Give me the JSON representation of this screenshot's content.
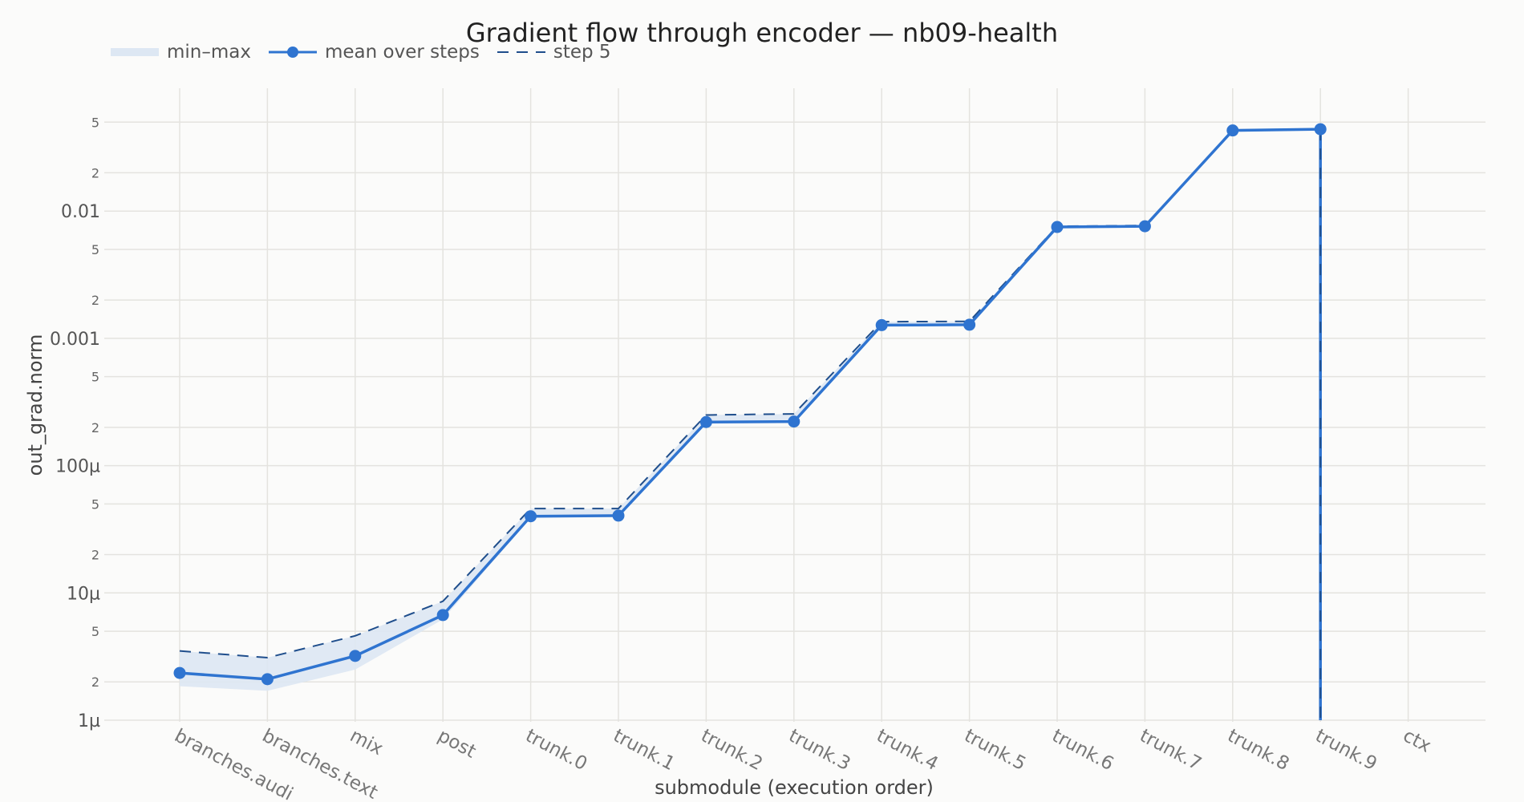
{
  "chart_data": {
    "type": "line",
    "title": "Gradient flow through encoder — nb09-health",
    "xlabel": "submodule (execution order)",
    "ylabel": "out_grad.norm",
    "y_scale": "log",
    "ylim": [
      1e-06,
      0.06
    ],
    "grid": true,
    "legend_position": "top-left",
    "categories": [
      "branches.audio",
      "branches.text",
      "mix",
      "post",
      "trunk.0",
      "trunk.1",
      "trunk.2",
      "trunk.3",
      "trunk.4",
      "trunk.5",
      "trunk.6",
      "trunk.7",
      "trunk.8",
      "trunk.9",
      "ctx"
    ],
    "category_labels": [
      "branches.audi",
      "branches.text",
      "mix",
      "post",
      "trunk.0",
      "trunk.1",
      "trunk.2",
      "trunk.3",
      "trunk.4",
      "trunk.5",
      "trunk.6",
      "trunk.7",
      "trunk.8",
      "trunk.9",
      "ctx"
    ],
    "y_major_ticks": [
      {
        "value": 1e-06,
        "label": "1µ"
      },
      {
        "value": 1e-05,
        "label": "10µ"
      },
      {
        "value": 0.0001,
        "label": "100µ"
      },
      {
        "value": 0.001,
        "label": "0.001"
      },
      {
        "value": 0.01,
        "label": "0.01"
      }
    ],
    "y_minor_ticks": [
      {
        "value": 2e-06,
        "label": "2"
      },
      {
        "value": 5e-06,
        "label": "5"
      },
      {
        "value": 2e-05,
        "label": "2"
      },
      {
        "value": 5e-05,
        "label": "5"
      },
      {
        "value": 0.0002,
        "label": "2"
      },
      {
        "value": 0.0005,
        "label": "5"
      },
      {
        "value": 0.002,
        "label": "2"
      },
      {
        "value": 0.005,
        "label": "5"
      },
      {
        "value": 0.02,
        "label": "2"
      },
      {
        "value": 0.05,
        "label": "5"
      }
    ],
    "series": [
      {
        "name": "min–max",
        "kind": "band",
        "min": [
          1.85e-06,
          1.7e-06,
          2.5e-06,
          6.2e-06,
          3.9e-05,
          4e-05,
          0.00022,
          0.00022,
          0.00125,
          0.00126,
          0.0074,
          0.0075,
          0.042,
          0.043,
          null
        ],
        "max": [
          3.5e-06,
          3.1e-06,
          4.6e-06,
          8.6e-06,
          4.6e-05,
          4.6e-05,
          0.00025,
          0.000255,
          0.00135,
          0.00136,
          0.0077,
          0.0078,
          0.044,
          0.045,
          null
        ]
      },
      {
        "name": "mean over steps",
        "kind": "line-markers",
        "values": [
          2.35e-06,
          2.1e-06,
          3.2e-06,
          6.7e-06,
          4e-05,
          4.05e-05,
          0.00022,
          0.000222,
          0.00127,
          0.00128,
          0.0075,
          0.0076,
          0.043,
          0.044,
          null
        ]
      },
      {
        "name": "step 5",
        "kind": "dashed-line",
        "values": [
          3.5e-06,
          3.1e-06,
          4.6e-06,
          8.6e-06,
          4.6e-05,
          4.6e-05,
          0.00025,
          0.000255,
          0.00135,
          0.00136,
          0.0076,
          0.0077,
          0.043,
          0.044,
          null
        ]
      }
    ],
    "annotations": [
      {
        "kind": "vertical-drop",
        "category": "trunk.9",
        "from": 0.044,
        "to": 1e-06
      }
    ],
    "colors": {
      "mean": "#2f74d0",
      "step": "#1f4e8c",
      "band": "#dde7f3",
      "grid": "#e4e3df",
      "background": "#fbfbfa"
    }
  }
}
